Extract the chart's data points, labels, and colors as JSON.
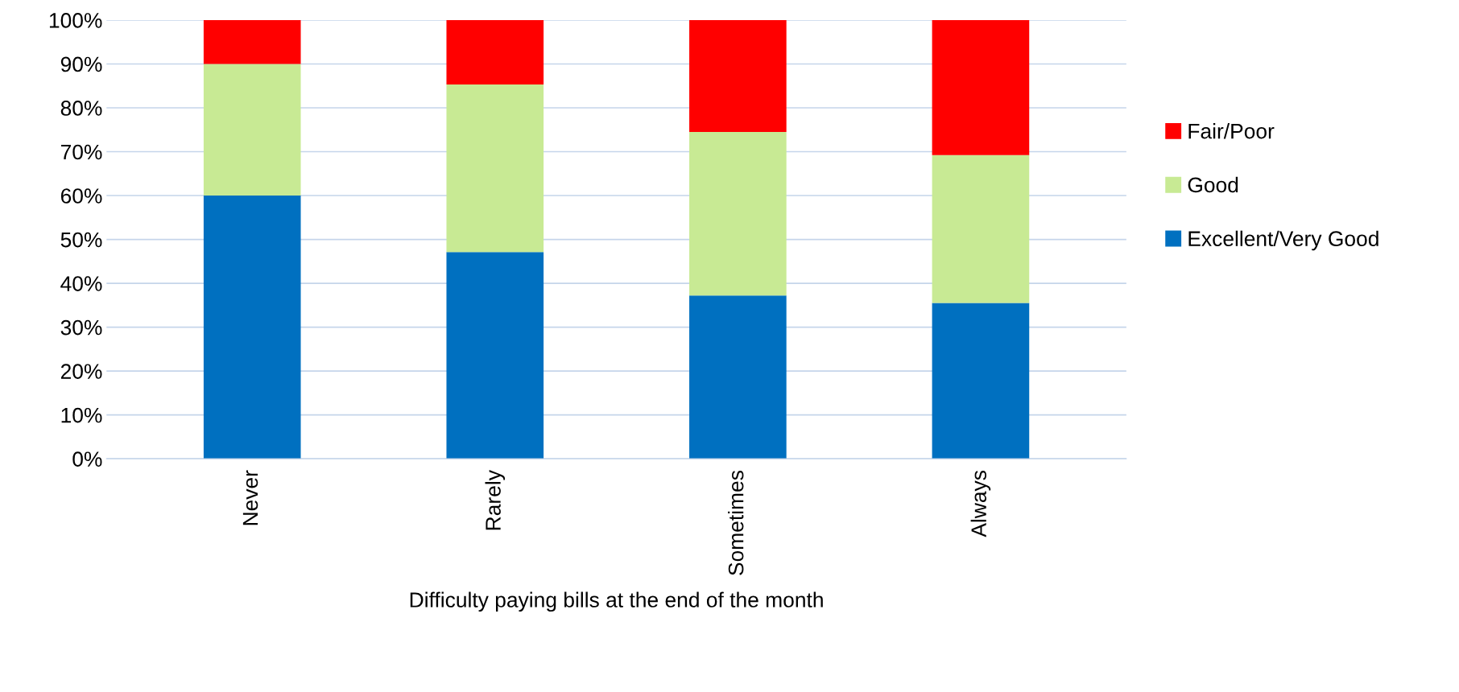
{
  "chart_data": {
    "type": "bar",
    "stacked": true,
    "xlabel": "Difficulty paying bills at the end of the month",
    "categories": [
      "Never",
      "Rarely",
      "Sometimes",
      "Always"
    ],
    "series": [
      {
        "name": "Excellent/Very Good",
        "color": "#0070c0",
        "values": [
          60,
          47.1,
          37.2,
          35.5
        ]
      },
      {
        "name": "Good",
        "color": "#c8ea94",
        "values": [
          30,
          38.2,
          37.3,
          33.7
        ]
      },
      {
        "name": "Fair/Poor",
        "color": "#ff0000",
        "values": [
          10,
          14.7,
          25.5,
          30.8
        ]
      }
    ],
    "ylim": [
      0,
      100
    ],
    "yticks": [
      {
        "value": 0,
        "label": "0%"
      },
      {
        "value": 10,
        "label": "10%"
      },
      {
        "value": 20,
        "label": "20%"
      },
      {
        "value": 30,
        "label": "30%"
      },
      {
        "value": 40,
        "label": "40%"
      },
      {
        "value": 50,
        "label": "50%"
      },
      {
        "value": 60,
        "label": "60%"
      },
      {
        "value": 70,
        "label": "70%"
      },
      {
        "value": 80,
        "label": "80%"
      },
      {
        "value": 90,
        "label": "90%"
      },
      {
        "value": 100,
        "label": "100%"
      }
    ],
    "grid": "y",
    "legend": "right"
  }
}
